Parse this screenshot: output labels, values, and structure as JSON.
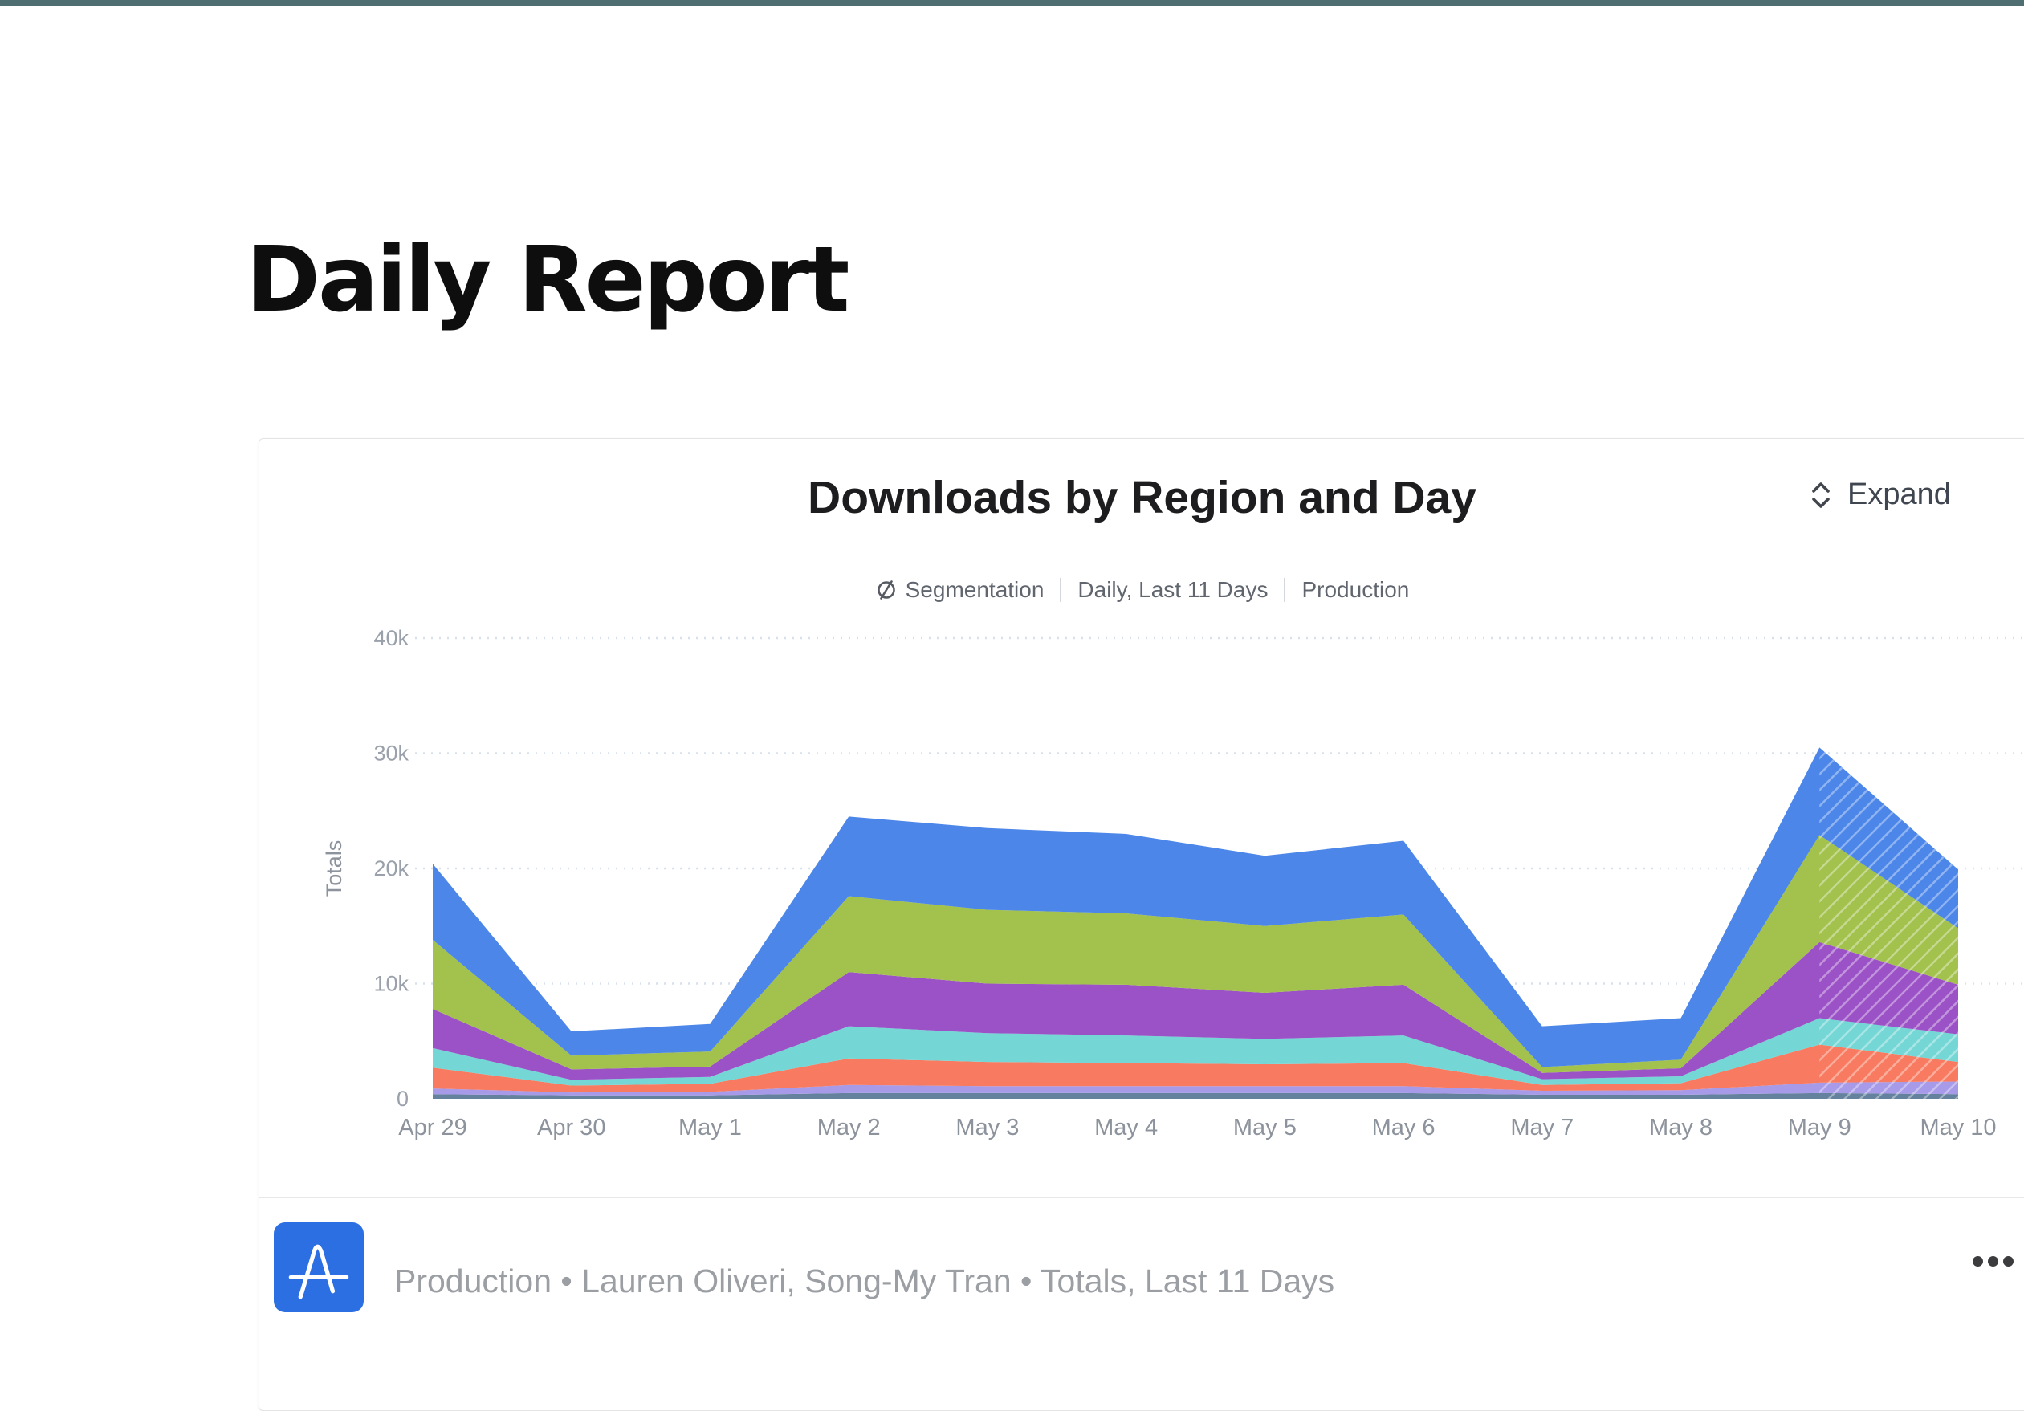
{
  "page": {
    "title": "Daily Report",
    "top_bar_color": "#4e6e71"
  },
  "card": {
    "expand_label": "Expand",
    "subtitle": {
      "chart_type": "Segmentation",
      "date_range": "Daily, Last 11 Days",
      "project": "Production"
    },
    "footer": {
      "text": "Production • Lauren Oliveri, Song-My Tran • Totals, Last 11 Days"
    }
  },
  "chart_data": {
    "type": "area",
    "stacked": true,
    "title": "Downloads by Region and Day",
    "xlabel": "",
    "ylabel": "Totals",
    "x": [
      "Apr 29",
      "Apr 30",
      "May 1",
      "May 2",
      "May 3",
      "May 4",
      "May 5",
      "May 6",
      "May 7",
      "May 8",
      "May 9",
      "May 10"
    ],
    "yticks": [
      "0",
      "10k",
      "20k",
      "30k",
      "40k"
    ],
    "ytick_values": [
      0,
      10000,
      20000,
      30000,
      40000
    ],
    "ylim": [
      0,
      40000
    ],
    "grid": "horizontal dotted",
    "legend_position": "none",
    "incomplete_from_index": 10,
    "series_note": "stack order bottom to top; region names not visible in screenshot, series identified by color",
    "series": [
      {
        "name": "slate",
        "color": "#64819d",
        "values": [
          400,
          300,
          300,
          500,
          500,
          500,
          500,
          500,
          350,
          350,
          500,
          400
        ]
      },
      {
        "name": "lavender",
        "color": "#a79ae9",
        "values": [
          500,
          250,
          300,
          700,
          600,
          600,
          600,
          600,
          350,
          400,
          900,
          1100
        ]
      },
      {
        "name": "salmon",
        "color": "#f87a60",
        "values": [
          1800,
          600,
          700,
          2300,
          2100,
          2000,
          1900,
          2000,
          500,
          600,
          3300,
          1700
        ]
      },
      {
        "name": "teal",
        "color": "#74d7d5",
        "values": [
          1700,
          500,
          600,
          2800,
          2500,
          2400,
          2200,
          2400,
          500,
          600,
          2300,
          2400
        ]
      },
      {
        "name": "purple",
        "color": "#9c52c7",
        "values": [
          3400,
          900,
          900,
          4700,
          4300,
          4400,
          4000,
          4400,
          550,
          700,
          6600,
          4300
        ]
      },
      {
        "name": "green",
        "color": "#a2c14d",
        "values": [
          6000,
          1200,
          1300,
          6600,
          6400,
          6200,
          5800,
          6100,
          500,
          750,
          9300,
          4900
        ]
      },
      {
        "name": "blue",
        "color": "#4c86e8",
        "values": [
          6600,
          2100,
          2400,
          6900,
          7100,
          6900,
          6100,
          6400,
          3550,
          3600,
          7600,
          5100
        ]
      }
    ],
    "totals": [
      20400,
      5850,
      6500,
      24500,
      23500,
      23000,
      21100,
      22400,
      6300,
      7000,
      30500,
      19900
    ]
  }
}
